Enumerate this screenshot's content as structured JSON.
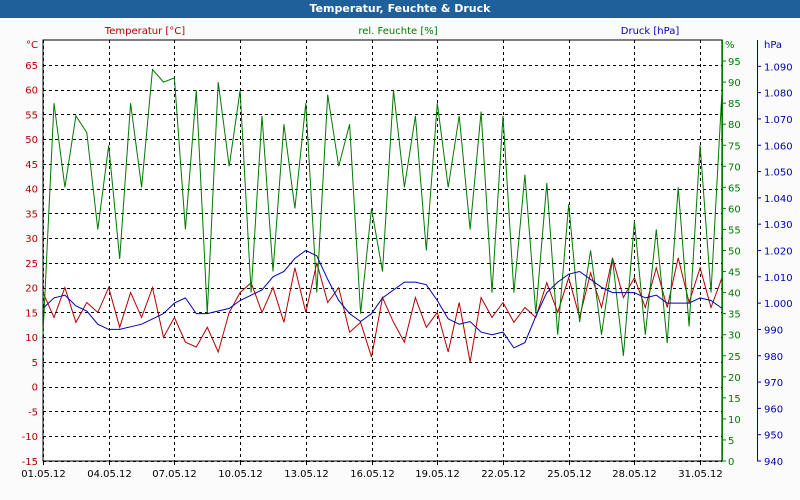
{
  "title": "Temperatur, Feuchte & Druck",
  "colors": {
    "titlebar": "#1f5f9a",
    "temperature": "#b30000",
    "humidity": "#007a00",
    "pressure": "#0000b3",
    "grid": "#000000"
  },
  "chart_data": {
    "type": "line",
    "title": "Temperatur, Feuchte & Druck",
    "grid": true,
    "x_ticks": [
      "01.05.12",
      "04.05.12",
      "07.05.12",
      "10.05.12",
      "13.05.12",
      "16.05.12",
      "19.05.12",
      "22.05.12",
      "25.05.12",
      "28.05.12",
      "31.05.12"
    ],
    "xlim": [
      "01.05.12",
      "01.06.12"
    ],
    "axes": {
      "temperature": {
        "unit_label": "°C",
        "side": "left",
        "ylim": [
          -15,
          70
        ],
        "ticks": [
          "-15",
          "-10",
          "-5",
          "0",
          "5",
          "10",
          "15",
          "20",
          "25",
          "30",
          "35",
          "40",
          "45",
          "50",
          "55",
          "60",
          "65"
        ]
      },
      "humidity": {
        "unit_label": "%",
        "side": "right-inner",
        "ylim": [
          0,
          100
        ],
        "ticks": [
          "0",
          "5",
          "10",
          "15",
          "20",
          "25",
          "30",
          "35",
          "40",
          "45",
          "50",
          "55",
          "60",
          "65",
          "70",
          "75",
          "80",
          "85",
          "90",
          "95"
        ]
      },
      "pressure": {
        "unit_label": "hPa",
        "side": "right-outer",
        "ylim": [
          940,
          1100
        ],
        "ticks": [
          "940",
          "950",
          "960",
          "970",
          "980",
          "990",
          "1.000",
          "1.010",
          "1.020",
          "1.030",
          "1.040",
          "1.050",
          "1.060",
          "1.070",
          "1.080",
          "1.090"
        ]
      }
    },
    "series": [
      {
        "name": "Temperatur [°C]",
        "axis": "temperature",
        "x_days": [
          0,
          0.5,
          1,
          1.5,
          2,
          2.5,
          3,
          3.5,
          4,
          4.5,
          5,
          5.5,
          6,
          6.5,
          7,
          7.5,
          8,
          8.5,
          9,
          9.5,
          10,
          10.5,
          11,
          11.5,
          12,
          12.5,
          13,
          13.5,
          14,
          14.5,
          15,
          15.5,
          16,
          16.5,
          17,
          17.5,
          18,
          18.5,
          19,
          19.5,
          20,
          20.5,
          21,
          21.5,
          22,
          22.5,
          23,
          23.5,
          24,
          24.5,
          25,
          25.5,
          26,
          26.5,
          27,
          27.5,
          28,
          28.5,
          29,
          29.5,
          30,
          30.5,
          31
        ],
        "values": [
          19,
          14,
          20,
          13,
          17,
          15,
          20,
          12,
          19,
          14,
          20,
          10,
          14,
          9,
          8,
          12,
          7,
          15,
          19,
          21,
          15,
          20,
          13,
          24,
          15,
          25,
          17,
          20,
          11,
          13,
          6,
          18,
          13,
          9,
          18,
          12,
          15,
          7,
          17,
          5,
          18,
          14,
          17,
          13,
          16,
          14,
          21,
          15,
          22,
          14,
          23,
          16,
          26,
          18,
          22,
          16,
          24,
          16,
          26,
          17,
          24,
          16,
          22
        ]
      },
      {
        "name": "rel. Feuchte [%]",
        "axis": "humidity",
        "x_days": [
          0,
          0.5,
          1,
          1.5,
          2,
          2.5,
          3,
          3.5,
          4,
          4.5,
          5,
          5.5,
          6,
          6.5,
          7,
          7.5,
          8,
          8.5,
          9,
          9.5,
          10,
          10.5,
          11,
          11.5,
          12,
          12.5,
          13,
          13.5,
          14,
          14.5,
          15,
          15.5,
          16,
          16.5,
          17,
          17.5,
          18,
          18.5,
          19,
          19.5,
          20,
          20.5,
          21,
          21.5,
          22,
          22.5,
          23,
          23.5,
          24,
          24.5,
          25,
          25.5,
          26,
          26.5,
          27,
          27.5,
          28,
          28.5,
          29,
          29.5,
          30,
          30.5,
          31
        ],
        "values": [
          30,
          85,
          65,
          82,
          78,
          55,
          75,
          48,
          85,
          65,
          93,
          90,
          91,
          55,
          88,
          35,
          90,
          70,
          88,
          40,
          82,
          45,
          80,
          60,
          85,
          40,
          87,
          70,
          80,
          35,
          60,
          45,
          88,
          65,
          82,
          50,
          85,
          65,
          82,
          55,
          83,
          40,
          82,
          40,
          68,
          35,
          66,
          30,
          61,
          33,
          50,
          30,
          48,
          25,
          57,
          30,
          55,
          28,
          65,
          32,
          75,
          40,
          88
        ]
      },
      {
        "name": "Druck [hPa]",
        "axis": "pressure",
        "x_days": [
          0,
          0.5,
          1,
          1.5,
          2,
          2.5,
          3,
          3.5,
          4,
          4.5,
          5,
          5.5,
          6,
          6.5,
          7,
          7.5,
          8,
          8.5,
          9,
          9.5,
          10,
          10.5,
          11,
          11.5,
          12,
          12.5,
          13,
          13.5,
          14,
          14.5,
          15,
          15.5,
          16,
          16.5,
          17,
          17.5,
          18,
          18.5,
          19,
          19.5,
          20,
          20.5,
          21,
          21.5,
          22,
          22.5,
          23,
          23.5,
          24,
          24.5,
          25,
          25.5,
          26,
          26.5,
          27,
          27.5,
          28,
          28.5,
          29,
          29.5,
          30,
          30.5,
          31
        ],
        "values": [
          998,
          1002,
          1003,
          999,
          997,
          992,
          990,
          990,
          991,
          992,
          994,
          996,
          1000,
          1002,
          996,
          996,
          997,
          998,
          1001,
          1003,
          1005,
          1010,
          1012,
          1017,
          1020,
          1018,
          1009,
          1001,
          996,
          993,
          996,
          1002,
          1005,
          1008,
          1008,
          1007,
          1001,
          994,
          992,
          993,
          989,
          988,
          989,
          983,
          985,
          995,
          1004,
          1008,
          1011,
          1012,
          1009,
          1006,
          1004,
          1004,
          1004,
          1002,
          1003,
          1000,
          1000,
          1000,
          1002,
          1001,
          998
        ]
      }
    ]
  }
}
